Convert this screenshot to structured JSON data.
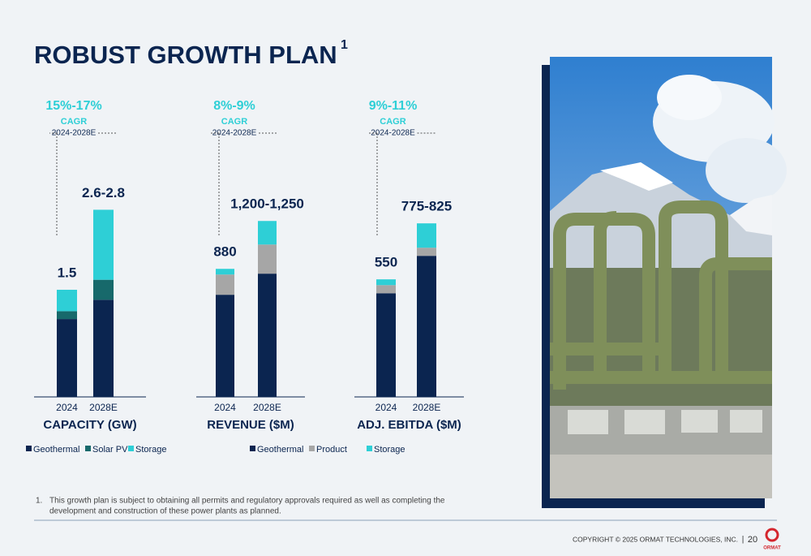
{
  "header": {
    "title": "ROBUST GROWTH PLAN",
    "title_note": "1"
  },
  "chart_data": [
    {
      "type": "bar",
      "stacked": true,
      "title": "CAPACITY (GW)",
      "growth": "15%-17%",
      "growth_label": "CAGR",
      "growth_period": "2024-2028E",
      "categories": [
        "2024",
        "2028E"
      ],
      "total_labels": [
        "1.5",
        "2.6-2.8"
      ],
      "ylim": [
        0,
        3
      ],
      "series": [
        {
          "name": "Geothermal",
          "color": "#0b2550",
          "values": [
            1.09,
            1.36
          ]
        },
        {
          "name": "Solar PV",
          "color": "#17696b",
          "values": [
            0.11,
            0.28
          ]
        },
        {
          "name": "Storage",
          "color": "#2ecfd6",
          "values": [
            0.3,
            0.98
          ]
        }
      ]
    },
    {
      "type": "bar",
      "stacked": true,
      "title": "REVENUE ($M)",
      "growth": "8%-9%",
      "growth_label": "CAGR",
      "growth_period": "2024-2028E",
      "categories": [
        "2024",
        "2028E"
      ],
      "total_labels": [
        "880",
        "1,200-1,250"
      ],
      "ylim": [
        0,
        1400
      ],
      "series": [
        {
          "name": "Geothermal",
          "color": "#0b2550",
          "values": [
            702,
            847
          ]
        },
        {
          "name": "Product",
          "color": "#a6a6a6",
          "values": [
            139,
            200
          ]
        },
        {
          "name": "Storage",
          "color": "#2ecfd6",
          "values": [
            39,
            162
          ]
        }
      ]
    },
    {
      "type": "bar",
      "stacked": true,
      "title": "ADJ. EBITDA ($M)",
      "growth": "9%-11%",
      "growth_label": "CAGR",
      "growth_period": "2024-2028E",
      "categories": [
        "2024",
        "2028E"
      ],
      "total_labels": [
        "550",
        "775-825"
      ],
      "ylim": [
        0,
        900
      ],
      "series": [
        {
          "name": "Geothermal",
          "color": "#0b2550",
          "values": [
            485,
            660
          ]
        },
        {
          "name": "Product",
          "color": "#a6a6a6",
          "values": [
            38,
            38
          ]
        },
        {
          "name": "Storage",
          "color": "#2ecfd6",
          "values": [
            27,
            114
          ]
        }
      ]
    }
  ],
  "footnote": {
    "number": "1.",
    "lines": [
      "This growth plan is subject to obtaining all permits and regulatory approvals required as well as completing the",
      "development and construction of these power plants as planned."
    ]
  },
  "footer": {
    "copyright": "COPYRIGHT © 2025 ORMAT TECHNOLOGIES, INC.",
    "separator": "|",
    "page": "20",
    "logo": "ORMAT"
  }
}
